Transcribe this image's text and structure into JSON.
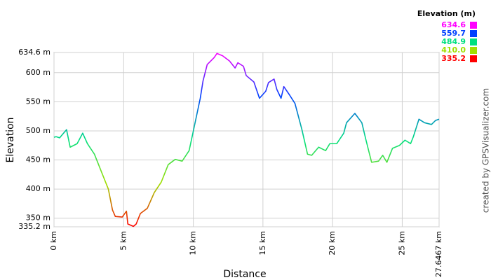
{
  "chart_data": {
    "type": "line",
    "x_label": "Distance",
    "y_label": "Elevation",
    "credit": "created by GPSVisualizer.com",
    "x": [
      0,
      0.15,
      0.4,
      0.9,
      1.16,
      1.66,
      2.06,
      2.4,
      2.9,
      3.4,
      3.9,
      4.2,
      4.4,
      4.9,
      5.2,
      5.3,
      5.7,
      5.9,
      6.2,
      6.7,
      7.2,
      7.7,
      8.2,
      8.7,
      9.2,
      9.7,
      9.97,
      10.5,
      10.7,
      11.0,
      11.5,
      11.7,
      12.1,
      12.6,
      13.0,
      13.2,
      13.6,
      13.8,
      14.35,
      14.75,
      15.2,
      15.4,
      15.8,
      16.0,
      16.3,
      16.5,
      16.9,
      17.3,
      17.8,
      18.2,
      18.5,
      19.0,
      19.5,
      19.8,
      20.3,
      20.8,
      21.0,
      21.6,
      22.1,
      22.4,
      22.8,
      23.3,
      23.6,
      23.9,
      24.3,
      24.8,
      25.2,
      25.6,
      25.8,
      26.2,
      26.6,
      27.1,
      27.4,
      27.6467
    ],
    "values": [
      489,
      490,
      488,
      502,
      472,
      478,
      496,
      478,
      460,
      430,
      400,
      364,
      353,
      352,
      362,
      340,
      336,
      340,
      358,
      367,
      394,
      412,
      442,
      451,
      448,
      466,
      496,
      556,
      586,
      614,
      626,
      633,
      629,
      620,
      608,
      617,
      611,
      595,
      584,
      556,
      568,
      583,
      589,
      571,
      556,
      576,
      562,
      547,
      502,
      460,
      458,
      472,
      466,
      478,
      478,
      496,
      514,
      530,
      514,
      484,
      446,
      448,
      458,
      446,
      470,
      475,
      484,
      478,
      490,
      520,
      514,
      511,
      518,
      520
    ],
    "xlim": [
      0,
      27.6467
    ],
    "ylim": [
      335.2,
      634.6
    ],
    "xticks": [
      {
        "value": 0,
        "label": "0 km"
      },
      {
        "value": 5,
        "label": "5 km"
      },
      {
        "value": 10,
        "label": "10 km"
      },
      {
        "value": 15,
        "label": "15 km"
      },
      {
        "value": 20,
        "label": "20 km"
      },
      {
        "value": 25,
        "label": "25 km"
      },
      {
        "value": 27.6467,
        "label": "27.6467 km"
      }
    ],
    "yticks": [
      {
        "value": 335.2,
        "label": "335.2 m"
      },
      {
        "value": 350,
        "label": "350 m"
      },
      {
        "value": 400,
        "label": "400 m"
      },
      {
        "value": 450,
        "label": "450 m"
      },
      {
        "value": 500,
        "label": "500 m"
      },
      {
        "value": 550,
        "label": "550 m"
      },
      {
        "value": 600,
        "label": "600 m"
      },
      {
        "value": 634.6,
        "label": "634.6 m"
      }
    ],
    "grid": true,
    "legend": {
      "title": "Elevation (m)",
      "position": "top-right",
      "stops": [
        {
          "value": 634.6,
          "color": "#ff00ff"
        },
        {
          "value": 559.7,
          "color": "#0040ff"
        },
        {
          "value": 484.9,
          "color": "#00e080"
        },
        {
          "value": 410,
          "label": "410.0",
          "color": "#a0e000"
        },
        {
          "value": 335.2,
          "color": "#ff0000"
        }
      ]
    }
  }
}
